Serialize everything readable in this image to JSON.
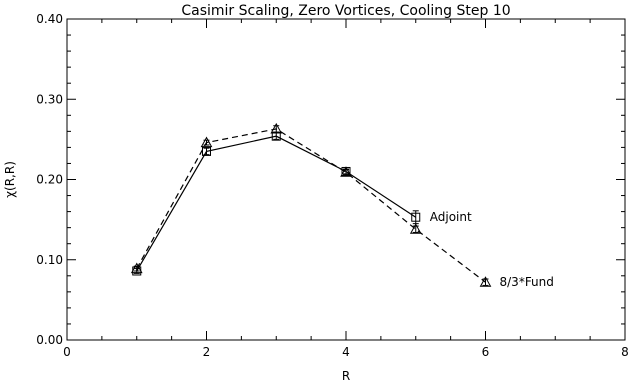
{
  "chart_data": {
    "type": "line",
    "title": "Casimir Scaling, Zero Vortices, Cooling Step 10",
    "xlabel": "R",
    "ylabel": "χ(R,R)",
    "xlim": [
      0,
      8
    ],
    "ylim": [
      0,
      0.4
    ],
    "x_ticks": [
      0,
      2,
      4,
      6,
      8
    ],
    "y_ticks": [
      "0.00",
      "0.10",
      "0.20",
      "0.30",
      "0.40"
    ],
    "grid": false,
    "series": [
      {
        "name": "Adjoint",
        "style": "solid",
        "marker": "square",
        "x": [
          1,
          2,
          3,
          4,
          5
        ],
        "y": [
          0.086,
          0.235,
          0.254,
          0.21,
          0.153
        ],
        "err": [
          0.003,
          0.004,
          0.004,
          0.003,
          0.008
        ]
      },
      {
        "name": "8/3*Fund",
        "style": "dashed",
        "marker": "triangle",
        "x": [
          1,
          2,
          3,
          4,
          5,
          6
        ],
        "y": [
          0.089,
          0.246,
          0.263,
          0.209,
          0.138,
          0.072
        ],
        "err": [
          0.003,
          0.003,
          0.004,
          0.003,
          0.004,
          0.004
        ]
      }
    ]
  }
}
